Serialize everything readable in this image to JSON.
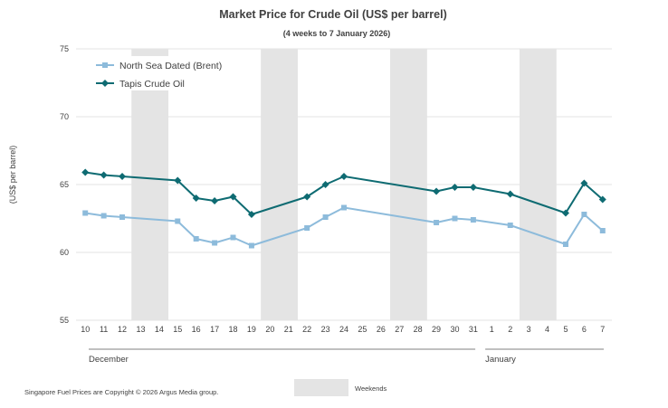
{
  "chart_data": {
    "type": "line",
    "title": "Market Price for Crude Oil (US$ per barrel)",
    "subtitle": "(4 weeks to 7 January 2026)",
    "ylabel": "(US$ per barrel)",
    "xlabel": "",
    "ylim": [
      55,
      75
    ],
    "yticks": [
      55,
      60,
      65,
      70,
      75
    ],
    "grid": true,
    "legend_position": "top-left",
    "categories": [
      "10",
      "11",
      "12",
      "13",
      "14",
      "15",
      "16",
      "17",
      "18",
      "19",
      "20",
      "21",
      "22",
      "23",
      "24",
      "25",
      "26",
      "27",
      "28",
      "29",
      "30",
      "31",
      "1",
      "2",
      "3",
      "4",
      "5",
      "6",
      "7"
    ],
    "months": [
      {
        "label": "December",
        "start_index": 0,
        "end_index": 21
      },
      {
        "label": "January",
        "start_index": 22,
        "end_index": 28
      }
    ],
    "weekends": [
      [
        3,
        4
      ],
      [
        10,
        11
      ],
      [
        17,
        18
      ],
      [
        24,
        25
      ]
    ],
    "weekend_legend": "Weekends",
    "series": [
      {
        "name": "North Sea Dated (Brent)",
        "color": "#8DBBDB",
        "marker": "square",
        "values": [
          62.9,
          62.7,
          62.6,
          null,
          null,
          62.3,
          61.0,
          60.7,
          61.1,
          60.5,
          null,
          null,
          61.8,
          62.6,
          63.3,
          null,
          null,
          null,
          null,
          62.2,
          62.5,
          62.4,
          null,
          62.0,
          null,
          null,
          60.6,
          62.8,
          61.6
        ]
      },
      {
        "name": "Tapis Crude Oil",
        "color": "#0E6B72",
        "marker": "diamond",
        "values": [
          65.9,
          65.7,
          65.6,
          null,
          null,
          65.3,
          64.0,
          63.8,
          64.1,
          62.8,
          null,
          null,
          64.1,
          65.0,
          65.6,
          null,
          null,
          null,
          null,
          64.5,
          64.8,
          64.8,
          null,
          64.3,
          null,
          null,
          62.9,
          65.1,
          63.9
        ]
      }
    ]
  },
  "footer": "Singapore Fuel Prices are Copyright © 2026 Argus Media group."
}
